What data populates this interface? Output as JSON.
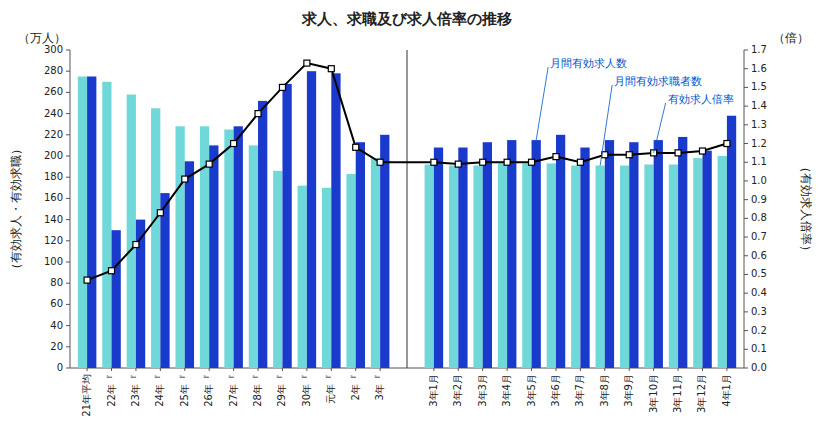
{
  "chart_data": {
    "type": "bar",
    "title": "求人、求職及び求人倍率の推移",
    "categories": [
      "21年平均",
      "22年『",
      "23年『",
      "24年『",
      "25年『",
      "26年『",
      "27年『",
      "28年『",
      "29年『",
      "30年『",
      "元年『",
      "2年『",
      "3年『",
      "3年1月",
      "3年2月",
      "3年3月",
      "3年4月",
      "3年5月",
      "3年6月",
      "3年7月",
      "3年8月",
      "3年9月",
      "3年10月",
      "3年11月",
      "3年12月",
      "4年1月"
    ],
    "series": [
      {
        "name": "月間有効求職者数",
        "color": "#70d8d8",
        "values": [
          275,
          270,
          258,
          245,
          228,
          228,
          225,
          210,
          186,
          172,
          170,
          183,
          198,
          192,
          191,
          191,
          193,
          193,
          193,
          191,
          191,
          191,
          192,
          192,
          198,
          200
        ]
      },
      {
        "name": "月間有効求人数",
        "color": "#1a3acc",
        "values": [
          275,
          130,
          140,
          165,
          195,
          210,
          228,
          252,
          268,
          280,
          278,
          213,
          220,
          208,
          208,
          213,
          215,
          215,
          220,
          208,
          215,
          213,
          215,
          218,
          205,
          238
        ]
      },
      {
        "name": "有効求人倍率",
        "type": "line",
        "axis": "y2",
        "color": "#000000",
        "marker": "square",
        "values": [
          0.47,
          0.52,
          0.66,
          0.83,
          1.01,
          1.09,
          1.2,
          1.36,
          1.5,
          1.63,
          1.6,
          1.18,
          1.1,
          1.1,
          1.09,
          1.1,
          1.1,
          1.1,
          1.13,
          1.1,
          1.14,
          1.14,
          1.15,
          1.15,
          1.16,
          1.2
        ]
      }
    ],
    "ylabel": "（有効求人・有効求職）",
    "y2label": "（有効求人倍率）",
    "annotations": [
      "（万人）",
      "（倍）"
    ],
    "ylim": [
      0,
      300
    ],
    "yticks": [
      0,
      20,
      40,
      60,
      80,
      100,
      120,
      140,
      160,
      180,
      200,
      220,
      240,
      260,
      280,
      300
    ],
    "y2lim": [
      0.0,
      1.7
    ],
    "y2ticks": [
      {
        "value": 0,
        "label": "0.0"
      },
      0.1,
      0.2,
      0.3,
      0.4,
      0.5,
      0.6,
      0.7,
      0.8,
      0.9,
      {
        "value": 1,
        "label": "1.0"
      },
      1.1,
      1.2,
      1.3,
      1.4,
      1.5,
      1.6,
      1.7
    ],
    "grid": false,
    "legend": false
  }
}
